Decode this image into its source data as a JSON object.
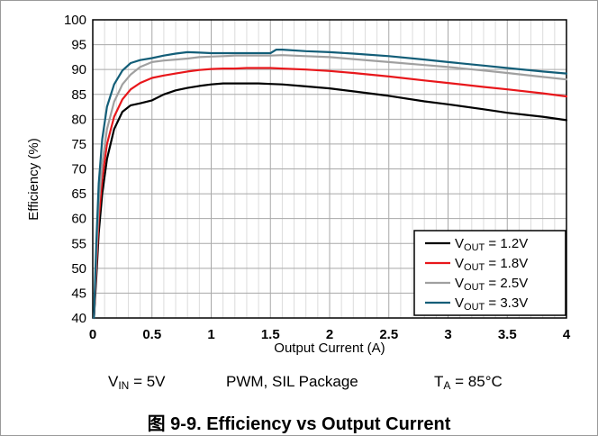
{
  "chart_data": {
    "type": "line",
    "xlabel": "Output Current (A)",
    "ylabel": "Efficiency (%)",
    "xlim": [
      0,
      4
    ],
    "ylim": [
      40,
      100
    ],
    "x_ticks": [
      "0",
      "0.5",
      "1",
      "1.5",
      "2",
      "2.5",
      "3",
      "3.5",
      "4"
    ],
    "y_ticks": [
      "40",
      "45",
      "50",
      "55",
      "60",
      "65",
      "70",
      "75",
      "80",
      "85",
      "90",
      "95",
      "100"
    ],
    "grid": true,
    "legend_position": "bottom-right",
    "series": [
      {
        "name": "V_OUT = 1.2V",
        "label_main": "V",
        "label_sub": "OUT",
        "label_rest": " = 1.2V",
        "color": "#000000",
        "x": [
          0.01,
          0.03,
          0.05,
          0.08,
          0.12,
          0.18,
          0.25,
          0.32,
          0.4,
          0.5,
          0.6,
          0.7,
          0.8,
          0.9,
          1.0,
          1.1,
          1.2,
          1.3,
          1.4,
          1.5,
          1.6,
          1.8,
          2.0,
          2.2,
          2.5,
          2.8,
          3.0,
          3.3,
          3.5,
          3.8,
          4.0
        ],
        "y": [
          40.0,
          48.0,
          57.0,
          65.0,
          72.0,
          78.0,
          81.5,
          82.8,
          83.2,
          83.8,
          85.0,
          85.8,
          86.3,
          86.7,
          87.0,
          87.2,
          87.2,
          87.2,
          87.2,
          87.1,
          87.0,
          86.6,
          86.2,
          85.6,
          84.7,
          83.6,
          83.0,
          82.0,
          81.3,
          80.5,
          79.8
        ]
      },
      {
        "name": "V_OUT = 1.8V",
        "label_main": "V",
        "label_sub": "OUT",
        "label_rest": " = 1.8V",
        "color": "#e8171b",
        "x": [
          0.01,
          0.03,
          0.05,
          0.08,
          0.12,
          0.18,
          0.25,
          0.32,
          0.4,
          0.5,
          0.6,
          0.7,
          0.8,
          0.9,
          1.0,
          1.1,
          1.2,
          1.3,
          1.4,
          1.5,
          1.6,
          1.8,
          2.0,
          2.2,
          2.5,
          2.8,
          3.0,
          3.3,
          3.5,
          3.8,
          4.0
        ],
        "y": [
          40.0,
          50.0,
          60.0,
          68.0,
          75.0,
          80.5,
          84.0,
          86.0,
          87.3,
          88.3,
          88.8,
          89.2,
          89.6,
          89.9,
          90.1,
          90.2,
          90.2,
          90.3,
          90.3,
          90.3,
          90.2,
          90.0,
          89.7,
          89.3,
          88.6,
          87.8,
          87.3,
          86.5,
          86.0,
          85.2,
          84.6
        ]
      },
      {
        "name": "V_OUT = 2.5V",
        "label_main": "V",
        "label_sub": "OUT",
        "label_rest": " = 2.5V",
        "color": "#a0a0a0",
        "x": [
          0.01,
          0.03,
          0.05,
          0.08,
          0.12,
          0.18,
          0.25,
          0.32,
          0.4,
          0.5,
          0.6,
          0.7,
          0.8,
          0.9,
          1.0,
          1.1,
          1.2,
          1.3,
          1.4,
          1.5,
          1.6,
          1.8,
          2.0,
          2.2,
          2.5,
          2.8,
          3.0,
          3.3,
          3.5,
          3.8,
          4.0
        ],
        "y": [
          40.0,
          52.0,
          63.0,
          71.0,
          78.0,
          83.5,
          87.0,
          89.0,
          90.5,
          91.5,
          91.8,
          92.0,
          92.2,
          92.5,
          92.6,
          92.7,
          92.8,
          92.8,
          92.8,
          92.8,
          92.9,
          92.7,
          92.5,
          92.1,
          91.5,
          90.9,
          90.5,
          89.8,
          89.3,
          88.5,
          88.0
        ]
      },
      {
        "name": "V_OUT = 3.3V",
        "label_main": "V",
        "label_sub": "OUT",
        "label_rest": " = 3.3V",
        "color": "#135e78",
        "x": [
          0.01,
          0.03,
          0.05,
          0.08,
          0.12,
          0.18,
          0.25,
          0.32,
          0.4,
          0.5,
          0.6,
          0.7,
          0.8,
          0.9,
          1.0,
          1.1,
          1.2,
          1.3,
          1.4,
          1.5,
          1.55,
          1.6,
          1.8,
          2.0,
          2.2,
          2.5,
          2.8,
          3.0,
          3.3,
          3.5,
          3.8,
          4.0
        ],
        "y": [
          40.0,
          55.0,
          67.0,
          76.0,
          82.5,
          87.0,
          89.8,
          91.3,
          91.9,
          92.3,
          92.8,
          93.2,
          93.5,
          93.4,
          93.3,
          93.3,
          93.3,
          93.3,
          93.3,
          93.3,
          94.0,
          94.0,
          93.7,
          93.5,
          93.2,
          92.7,
          92.0,
          91.5,
          90.8,
          90.3,
          89.6,
          89.2
        ]
      }
    ]
  },
  "conditions": {
    "vin_main": "V",
    "vin_sub": "IN",
    "vin_rest": " = 5V",
    "mode": "PWM, SIL Package",
    "ta_main": "T",
    "ta_sub": "A",
    "ta_rest": " = 85°C"
  },
  "caption": "图 9-9. Efficiency vs Output Current"
}
